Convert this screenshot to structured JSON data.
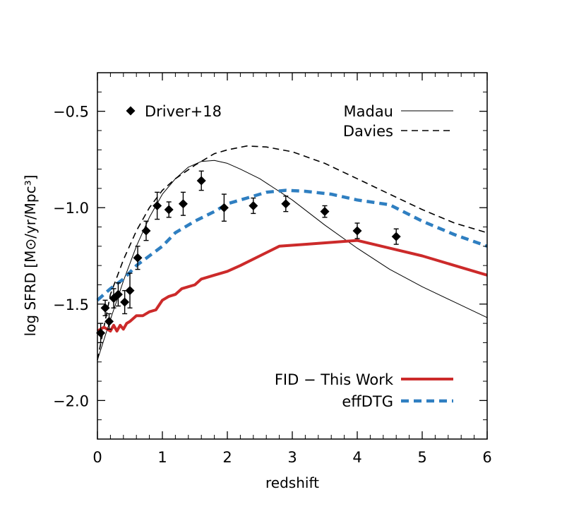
{
  "chart_data": {
    "type": "line",
    "xlabel": "redshift",
    "ylabel": "log SFRD [M⊙/yr/Mpc³]",
    "xlim": [
      0,
      6
    ],
    "ylim": [
      -2.2,
      -0.3
    ],
    "xticks": [
      0,
      1,
      2,
      3,
      4,
      5,
      6
    ],
    "xtick_labels": [
      "0",
      "1",
      "2",
      "3",
      "4",
      "5",
      "6"
    ],
    "yticks": [
      -2.0,
      -1.5,
      -1.0,
      -0.5
    ],
    "ytick_labels": [
      "−2.0",
      "−1.5",
      "−1.0",
      "−0.5"
    ],
    "grid": false,
    "points": {
      "name": "Driver+18",
      "color": "#000000",
      "marker": "diamond",
      "data": [
        {
          "x": 0.05,
          "y": -1.65,
          "err": 0.05
        },
        {
          "x": 0.12,
          "y": -1.52,
          "err": 0.04
        },
        {
          "x": 0.18,
          "y": -1.59,
          "err": 0.04
        },
        {
          "x": 0.25,
          "y": -1.47,
          "err": 0.05
        },
        {
          "x": 0.32,
          "y": -1.45,
          "err": 0.06
        },
        {
          "x": 0.42,
          "y": -1.49,
          "err": 0.06
        },
        {
          "x": 0.5,
          "y": -1.43,
          "err": 0.09
        },
        {
          "x": 0.62,
          "y": -1.26,
          "err": 0.06
        },
        {
          "x": 0.75,
          "y": -1.12,
          "err": 0.05
        },
        {
          "x": 0.92,
          "y": -0.99,
          "err": 0.07
        },
        {
          "x": 1.1,
          "y": -1.01,
          "err": 0.04
        },
        {
          "x": 1.32,
          "y": -0.98,
          "err": 0.06
        },
        {
          "x": 1.6,
          "y": -0.86,
          "err": 0.05
        },
        {
          "x": 1.95,
          "y": -1.0,
          "err": 0.07
        },
        {
          "x": 2.4,
          "y": -0.99,
          "err": 0.04
        },
        {
          "x": 2.9,
          "y": -0.98,
          "err": 0.04
        },
        {
          "x": 3.5,
          "y": -1.02,
          "err": 0.03
        },
        {
          "x": 4.0,
          "y": -1.12,
          "err": 0.04
        },
        {
          "x": 4.6,
          "y": -1.15,
          "err": 0.04
        }
      ]
    },
    "series": [
      {
        "name": "Madau",
        "color": "#000000",
        "style": "solid-thin",
        "x": [
          0,
          0.2,
          0.4,
          0.6,
          0.8,
          1.0,
          1.2,
          1.4,
          1.6,
          1.8,
          2.0,
          2.2,
          2.5,
          3.0,
          3.5,
          4.0,
          4.5,
          5.0,
          5.5,
          6.0
        ],
        "y": [
          -1.79,
          -1.58,
          -1.38,
          -1.2,
          -1.05,
          -0.93,
          -0.85,
          -0.79,
          -0.76,
          -0.755,
          -0.77,
          -0.8,
          -0.85,
          -0.96,
          -1.09,
          -1.21,
          -1.32,
          -1.41,
          -1.49,
          -1.57
        ]
      },
      {
        "name": "Davies",
        "color": "#000000",
        "style": "dashed",
        "x": [
          0,
          0.2,
          0.4,
          0.6,
          0.8,
          1.0,
          1.2,
          1.5,
          1.8,
          2.0,
          2.3,
          2.6,
          3.0,
          3.5,
          4.0,
          4.5,
          5.0,
          5.5,
          6.0
        ],
        "y": [
          -1.79,
          -1.45,
          -1.27,
          -1.12,
          -1.0,
          -0.91,
          -0.85,
          -0.78,
          -0.72,
          -0.7,
          -0.68,
          -0.685,
          -0.71,
          -0.77,
          -0.85,
          -0.93,
          -1.01,
          -1.08,
          -1.13
        ]
      },
      {
        "name": "FID − This Work",
        "color": "#cc2a2a",
        "style": "solid-thick",
        "x": [
          0,
          0.1,
          0.2,
          0.25,
          0.3,
          0.35,
          0.4,
          0.45,
          0.5,
          0.6,
          0.7,
          0.8,
          0.9,
          1.0,
          1.1,
          1.2,
          1.3,
          1.4,
          1.5,
          1.6,
          1.8,
          2.0,
          2.2,
          2.5,
          2.8,
          3.2,
          3.6,
          4.0,
          4.5,
          5.0,
          5.5,
          6.0
        ],
        "y": [
          -1.64,
          -1.62,
          -1.64,
          -1.61,
          -1.64,
          -1.61,
          -1.63,
          -1.6,
          -1.59,
          -1.56,
          -1.56,
          -1.54,
          -1.53,
          -1.48,
          -1.46,
          -1.45,
          -1.42,
          -1.41,
          -1.4,
          -1.37,
          -1.35,
          -1.33,
          -1.3,
          -1.25,
          -1.2,
          -1.19,
          -1.18,
          -1.17,
          -1.21,
          -1.25,
          -1.3,
          -1.35
        ]
      },
      {
        "name": "effDTG",
        "color": "#2f7fc1",
        "style": "dashed-thick",
        "x": [
          0,
          0.2,
          0.4,
          0.6,
          0.8,
          1.0,
          1.2,
          1.5,
          1.8,
          2.0,
          2.3,
          2.6,
          2.9,
          3.2,
          3.6,
          4.0,
          4.5,
          5.0,
          5.5,
          6.0
        ],
        "y": [
          -1.48,
          -1.42,
          -1.37,
          -1.3,
          -1.25,
          -1.2,
          -1.13,
          -1.07,
          -1.02,
          -0.98,
          -0.95,
          -0.92,
          -0.91,
          -0.915,
          -0.93,
          -0.96,
          -0.985,
          -1.07,
          -1.14,
          -1.2
        ]
      }
    ],
    "legend_top": [
      {
        "label": "Madau",
        "series": "Madau"
      },
      {
        "label": "Davies",
        "series": "Davies"
      }
    ],
    "legend_bottom": [
      {
        "label": "FID − This Work",
        "series": "FID − This Work"
      },
      {
        "label": "effDTG",
        "series": "effDTG"
      }
    ]
  }
}
